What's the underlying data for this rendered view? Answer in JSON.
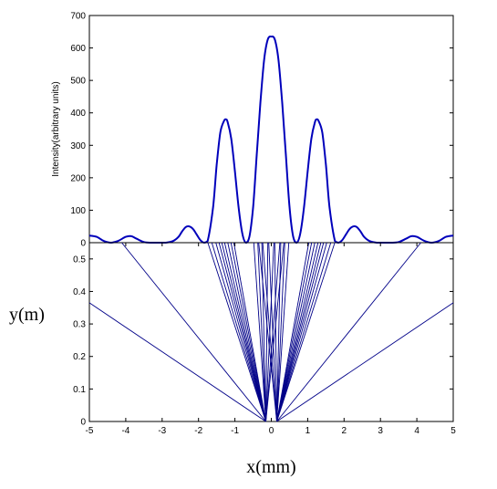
{
  "chart_data": [
    {
      "type": "line",
      "ylabel": "Intensity(arbitrary units)",
      "xlim": [
        -5,
        5
      ],
      "ylim": [
        0,
        700
      ],
      "yticks": [
        "0",
        "100",
        "200",
        "300",
        "400",
        "500",
        "600",
        "700"
      ],
      "grid": false,
      "series_color": "#0000bb",
      "points": {
        "x": [
          -5.0,
          -4.8,
          -4.6,
          -4.4,
          -4.2,
          -4.0,
          -3.85,
          -3.7,
          -3.5,
          -3.3,
          -3.1,
          -2.9,
          -2.7,
          -2.55,
          -2.45,
          -2.35,
          -2.25,
          -2.15,
          -2.05,
          -1.95,
          -1.85,
          -1.75,
          -1.6,
          -1.5,
          -1.4,
          -1.3,
          -1.25,
          -1.2,
          -1.1,
          -1.0,
          -0.9,
          -0.8,
          -0.7,
          -0.6,
          -0.5,
          -0.4,
          -0.3,
          -0.2,
          -0.1,
          0.0,
          0.1,
          0.2,
          0.3,
          0.4,
          0.5,
          0.6,
          0.7,
          0.8,
          0.9,
          1.0,
          1.1,
          1.2,
          1.25,
          1.3,
          1.4,
          1.5,
          1.6,
          1.75,
          1.85,
          1.95,
          2.05,
          2.15,
          2.25,
          2.35,
          2.45,
          2.55,
          2.7,
          2.9,
          3.1,
          3.3,
          3.5,
          3.7,
          3.85,
          4.0,
          4.2,
          4.4,
          4.6,
          4.8,
          5.0
        ],
        "y": [
          22,
          18,
          5,
          0,
          6,
          18,
          20,
          12,
          2,
          0,
          0,
          0,
          5,
          18,
          35,
          48,
          50,
          42,
          25,
          8,
          0,
          5,
          110,
          240,
          340,
          375,
          380,
          372,
          320,
          220,
          110,
          30,
          0,
          20,
          110,
          270,
          430,
          560,
          625,
          635,
          625,
          560,
          430,
          270,
          110,
          20,
          0,
          30,
          110,
          220,
          320,
          372,
          380,
          375,
          340,
          240,
          110,
          5,
          0,
          8,
          25,
          42,
          50,
          48,
          35,
          18,
          5,
          0,
          0,
          0,
          2,
          12,
          20,
          18,
          6,
          0,
          5,
          18,
          22
        ]
      }
    },
    {
      "type": "line",
      "xlabel": "x(mm)",
      "ylabel": "y(m)",
      "xlim": [
        -5,
        5
      ],
      "ylim": [
        0,
        0.55
      ],
      "xticks": [
        "-5",
        "-4",
        "-3",
        "-2",
        "-1",
        "0",
        "1",
        "2",
        "3",
        "4",
        "5"
      ],
      "yticks": [
        "0",
        "0.1",
        "0.2",
        "0.3",
        "0.4",
        "0.5"
      ],
      "grid": false,
      "series_color": "#000088",
      "rays": [
        {
          "x0": -0.15,
          "y0": 0,
          "x1": -5.0,
          "y1": 0.365
        },
        {
          "x0": -0.15,
          "y0": 0,
          "x1": -3.75,
          "y1": 0.5
        },
        {
          "x0": -0.15,
          "y0": 0,
          "x1": -1.6,
          "y1": 0.5
        },
        {
          "x0": -0.15,
          "y0": 0,
          "x1": -1.5,
          "y1": 0.5
        },
        {
          "x0": -0.15,
          "y0": 0,
          "x1": -1.4,
          "y1": 0.5
        },
        {
          "x0": -0.15,
          "y0": 0,
          "x1": -1.32,
          "y1": 0.5
        },
        {
          "x0": -0.15,
          "y0": 0,
          "x1": -1.25,
          "y1": 0.5
        },
        {
          "x0": -0.15,
          "y0": 0,
          "x1": -1.18,
          "y1": 0.5
        },
        {
          "x0": -0.15,
          "y0": 0,
          "x1": -1.1,
          "y1": 0.5
        },
        {
          "x0": -0.15,
          "y0": 0,
          "x1": -1.02,
          "y1": 0.5
        },
        {
          "x0": -0.15,
          "y0": 0,
          "x1": -0.95,
          "y1": 0.5
        },
        {
          "x0": -0.15,
          "y0": 0,
          "x1": -0.45,
          "y1": 0.5
        },
        {
          "x0": -0.15,
          "y0": 0,
          "x1": -0.35,
          "y1": 0.5
        },
        {
          "x0": -0.15,
          "y0": 0,
          "x1": -0.25,
          "y1": 0.5
        },
        {
          "x0": -0.15,
          "y0": 0,
          "x1": -0.1,
          "y1": 0.5
        },
        {
          "x0": -0.15,
          "y0": 0,
          "x1": 0.05,
          "y1": 0.5
        },
        {
          "x0": -0.15,
          "y0": 0,
          "x1": 0.2,
          "y1": 0.5
        },
        {
          "x0": -0.15,
          "y0": 0,
          "x1": 0.3,
          "y1": 0.5
        },
        {
          "x0": 0.15,
          "y0": 0,
          "x1": -0.3,
          "y1": 0.5
        },
        {
          "x0": 0.15,
          "y0": 0,
          "x1": -0.2,
          "y1": 0.5
        },
        {
          "x0": 0.15,
          "y0": 0,
          "x1": -0.05,
          "y1": 0.5
        },
        {
          "x0": 0.15,
          "y0": 0,
          "x1": 0.1,
          "y1": 0.5
        },
        {
          "x0": 0.15,
          "y0": 0,
          "x1": 0.25,
          "y1": 0.5
        },
        {
          "x0": 0.15,
          "y0": 0,
          "x1": 0.35,
          "y1": 0.5
        },
        {
          "x0": 0.15,
          "y0": 0,
          "x1": 0.45,
          "y1": 0.5
        },
        {
          "x0": 0.15,
          "y0": 0,
          "x1": 0.95,
          "y1": 0.5
        },
        {
          "x0": 0.15,
          "y0": 0,
          "x1": 1.02,
          "y1": 0.5
        },
        {
          "x0": 0.15,
          "y0": 0,
          "x1": 1.1,
          "y1": 0.5
        },
        {
          "x0": 0.15,
          "y0": 0,
          "x1": 1.18,
          "y1": 0.5
        },
        {
          "x0": 0.15,
          "y0": 0,
          "x1": 1.25,
          "y1": 0.5
        },
        {
          "x0": 0.15,
          "y0": 0,
          "x1": 1.32,
          "y1": 0.5
        },
        {
          "x0": 0.15,
          "y0": 0,
          "x1": 1.4,
          "y1": 0.5
        },
        {
          "x0": 0.15,
          "y0": 0,
          "x1": 1.5,
          "y1": 0.5
        },
        {
          "x0": 0.15,
          "y0": 0,
          "x1": 1.6,
          "y1": 0.5
        },
        {
          "x0": 0.15,
          "y0": 0,
          "x1": 3.75,
          "y1": 0.5
        },
        {
          "x0": 0.15,
          "y0": 0,
          "x1": 5.0,
          "y1": 0.365
        }
      ]
    }
  ]
}
